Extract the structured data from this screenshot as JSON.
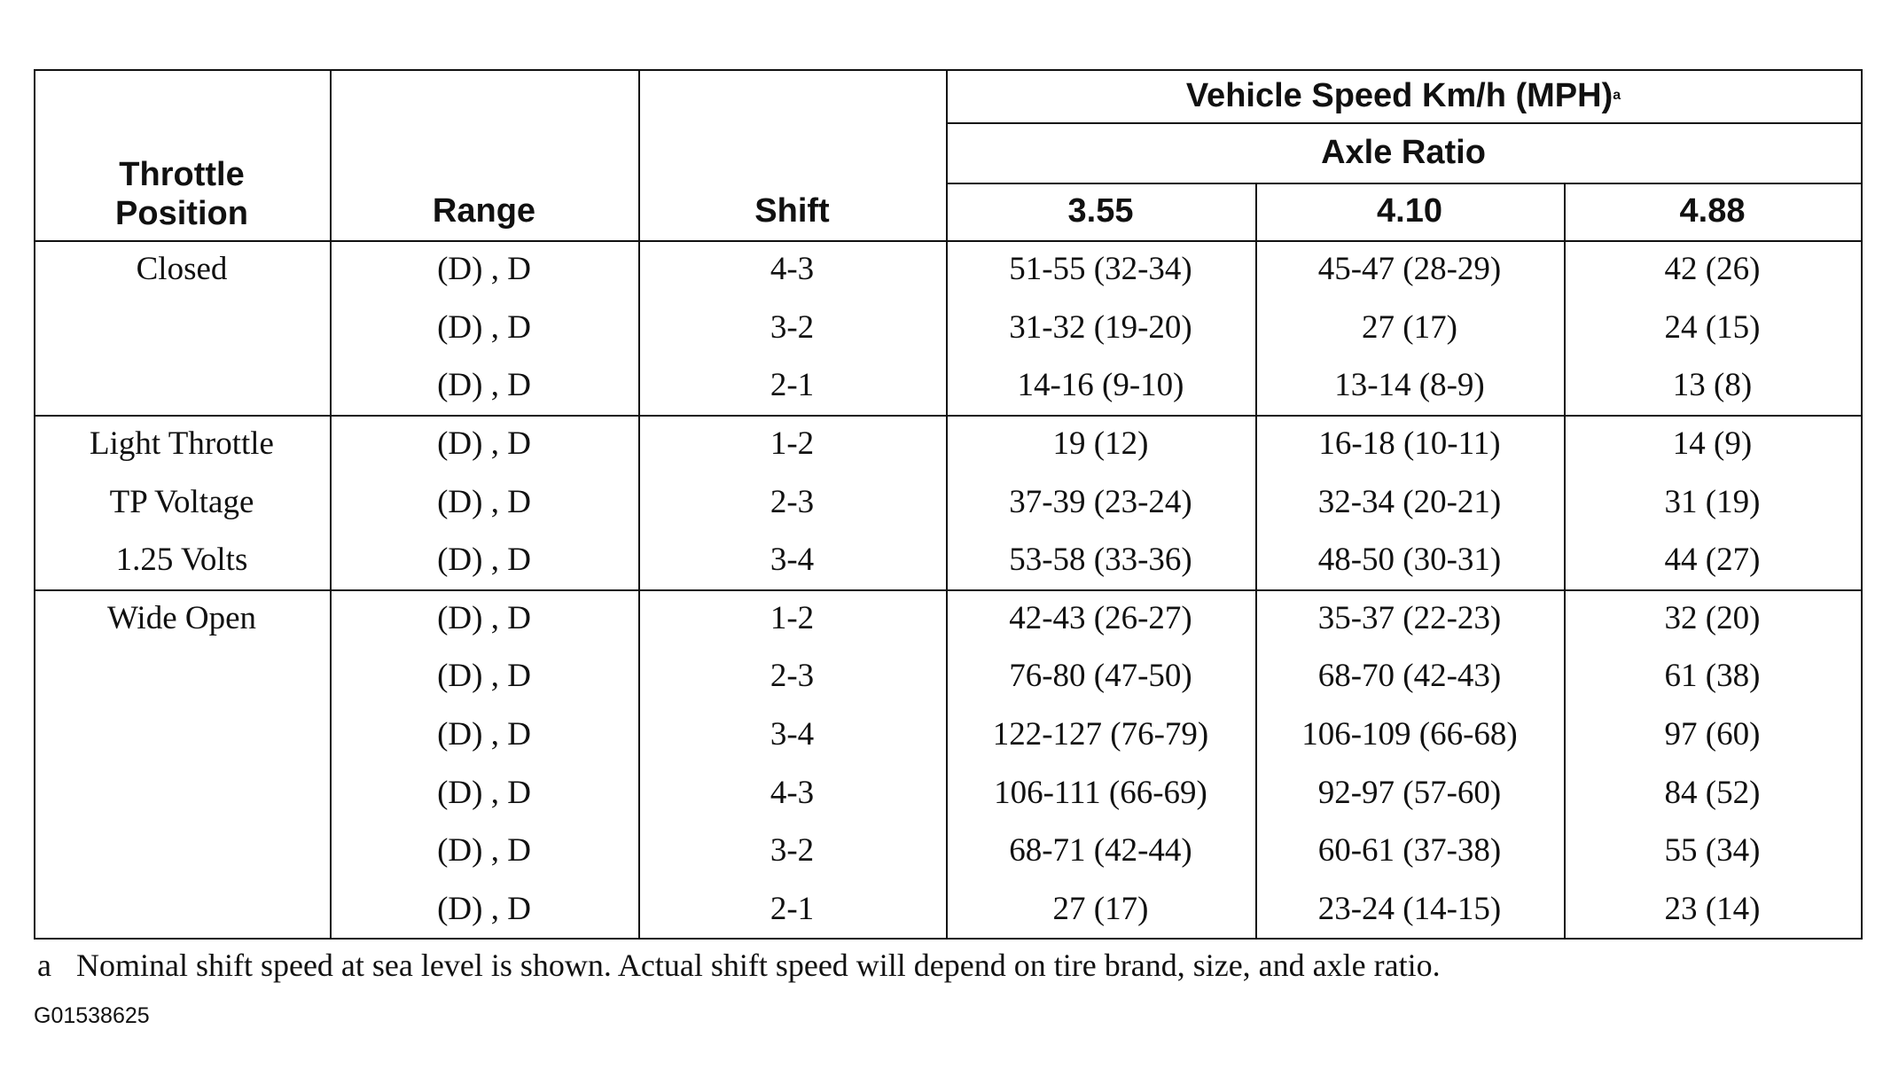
{
  "header": {
    "throttle_position": [
      "Throttle",
      "Position"
    ],
    "range": "Range",
    "shift": "Shift",
    "vehicle_speed": "Vehicle Speed Km/h (MPH)",
    "vehicle_speed_note": "a",
    "axle_ratio": "Axle Ratio",
    "axle_ratios": [
      "3.55",
      "4.10",
      "4.88"
    ]
  },
  "groups": [
    {
      "throttle": [
        "Closed"
      ],
      "rows": [
        {
          "range": "(D) , D",
          "shift": "4-3",
          "speeds": [
            "51-55 (32-34)",
            "45-47 (28-29)",
            "42 (26)"
          ]
        },
        {
          "range": "(D) , D",
          "shift": "3-2",
          "speeds": [
            "31-32 (19-20)",
            "27 (17)",
            "24 (15)"
          ]
        },
        {
          "range": "(D) , D",
          "shift": "2-1",
          "speeds": [
            "14-16 (9-10)",
            "13-14 (8-9)",
            "13 (8)"
          ]
        }
      ]
    },
    {
      "throttle": [
        "Light Throttle",
        "TP Voltage",
        "1.25 Volts"
      ],
      "rows": [
        {
          "range": "(D) , D",
          "shift": "1-2",
          "speeds": [
            "19 (12)",
            "16-18 (10-11)",
            "14 (9)"
          ]
        },
        {
          "range": "(D) , D",
          "shift": "2-3",
          "speeds": [
            "37-39 (23-24)",
            "32-34 (20-21)",
            "31 (19)"
          ]
        },
        {
          "range": "(D) , D",
          "shift": "3-4",
          "speeds": [
            "53-58 (33-36)",
            "48-50 (30-31)",
            "44 (27)"
          ]
        }
      ]
    },
    {
      "throttle": [
        "Wide Open"
      ],
      "rows": [
        {
          "range": "(D) , D",
          "shift": "1-2",
          "speeds": [
            "42-43 (26-27)",
            "35-37 (22-23)",
            "32 (20)"
          ]
        },
        {
          "range": "(D) , D",
          "shift": "2-3",
          "speeds": [
            "76-80 (47-50)",
            "68-70 (42-43)",
            "61 (38)"
          ]
        },
        {
          "range": "(D) , D",
          "shift": "3-4",
          "speeds": [
            "122-127 (76-79)",
            "106-109 (66-68)",
            "97 (60)"
          ]
        },
        {
          "range": "(D) , D",
          "shift": "4-3",
          "speeds": [
            "106-111 (66-69)",
            "92-97 (57-60)",
            "84 (52)"
          ]
        },
        {
          "range": "(D) , D",
          "shift": "3-2",
          "speeds": [
            "68-71 (42-44)",
            "60-61 (37-38)",
            "55 (34)"
          ]
        },
        {
          "range": "(D) , D",
          "shift": "2-1",
          "speeds": [
            "27 (17)",
            "23-24 (14-15)",
            "23 (14)"
          ]
        }
      ]
    }
  ],
  "footnote": {
    "marker": "a",
    "text": "Nominal shift speed at sea level is shown. Actual shift speed will depend on tire brand, size, and axle ratio."
  },
  "figure_id": "G01538625"
}
